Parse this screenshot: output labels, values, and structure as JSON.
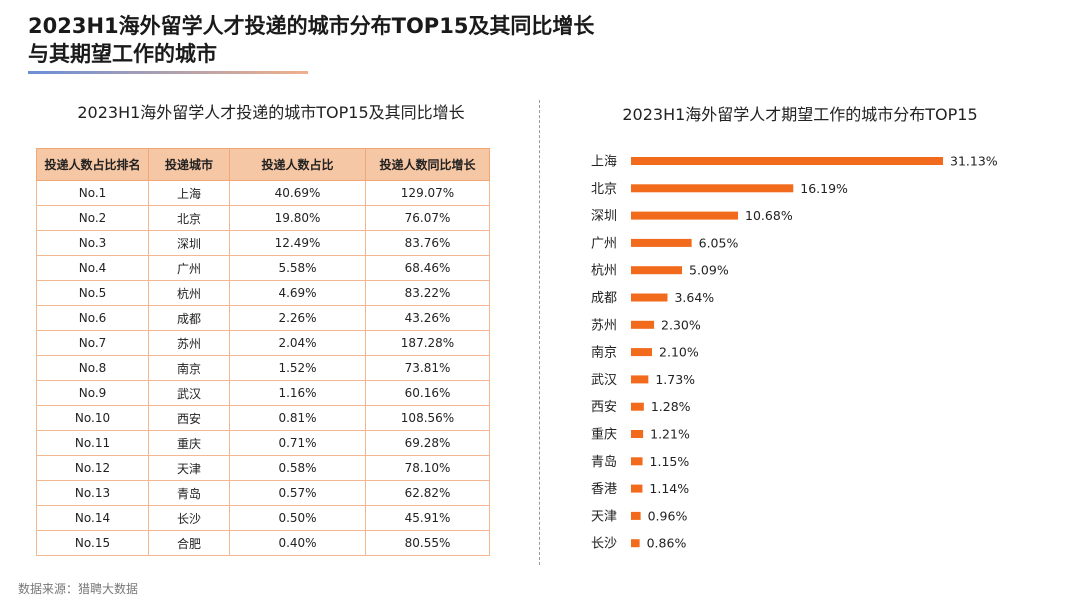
{
  "title_line1": "2023H1海外留学人才投递的城市分布TOP15及其同比增长",
  "title_line2": "与其期望工作的城市",
  "table": {
    "title": "2023H1海外留学人才投递的城市TOP15及其同比增长",
    "headers": [
      "投递人数占比排名",
      "投递城市",
      "投递人数占比",
      "投递人数同比增长"
    ],
    "rows": [
      [
        "No.1",
        "上海",
        "40.69%",
        "129.07%"
      ],
      [
        "No.2",
        "北京",
        "19.80%",
        "76.07%"
      ],
      [
        "No.3",
        "深圳",
        "12.49%",
        "83.76%"
      ],
      [
        "No.4",
        "广州",
        "5.58%",
        "68.46%"
      ],
      [
        "No.5",
        "杭州",
        "4.69%",
        "83.22%"
      ],
      [
        "No.6",
        "成都",
        "2.26%",
        "43.26%"
      ],
      [
        "No.7",
        "苏州",
        "2.04%",
        "187.28%"
      ],
      [
        "No.8",
        "南京",
        "1.52%",
        "73.81%"
      ],
      [
        "No.9",
        "武汉",
        "1.16%",
        "60.16%"
      ],
      [
        "No.10",
        "西安",
        "0.81%",
        "108.56%"
      ],
      [
        "No.11",
        "重庆",
        "0.71%",
        "69.28%"
      ],
      [
        "No.12",
        "天津",
        "0.58%",
        "78.10%"
      ],
      [
        "No.13",
        "青岛",
        "0.57%",
        "62.82%"
      ],
      [
        "No.14",
        "长沙",
        "0.50%",
        "45.91%"
      ],
      [
        "No.15",
        "合肥",
        "0.40%",
        "80.55%"
      ]
    ]
  },
  "source": "数据来源：猎聘大数据",
  "colors": {
    "bar": "#f26a1b",
    "header_bg": "#f6c7a4",
    "border": "#f3b891"
  },
  "chart_data": {
    "type": "bar",
    "orientation": "horizontal",
    "title": "2023H1海外留学人才期望工作的城市分布TOP15",
    "categories": [
      "上海",
      "北京",
      "深圳",
      "广州",
      "杭州",
      "成都",
      "苏州",
      "南京",
      "武汉",
      "西安",
      "重庆",
      "青岛",
      "香港",
      "天津",
      "长沙"
    ],
    "values": [
      31.13,
      16.19,
      10.68,
      6.05,
      5.09,
      3.64,
      2.3,
      2.1,
      1.73,
      1.28,
      1.21,
      1.15,
      1.14,
      0.96,
      0.86
    ],
    "value_labels": [
      "31.13%",
      "16.19%",
      "10.68%",
      "6.05%",
      "5.09%",
      "3.64%",
      "2.30%",
      "2.10%",
      "1.73%",
      "1.28%",
      "1.21%",
      "1.15%",
      "1.14%",
      "0.96%",
      "0.86%"
    ],
    "unit": "%",
    "xlim": [
      0,
      31.13
    ],
    "grid": false,
    "legend": "none"
  }
}
